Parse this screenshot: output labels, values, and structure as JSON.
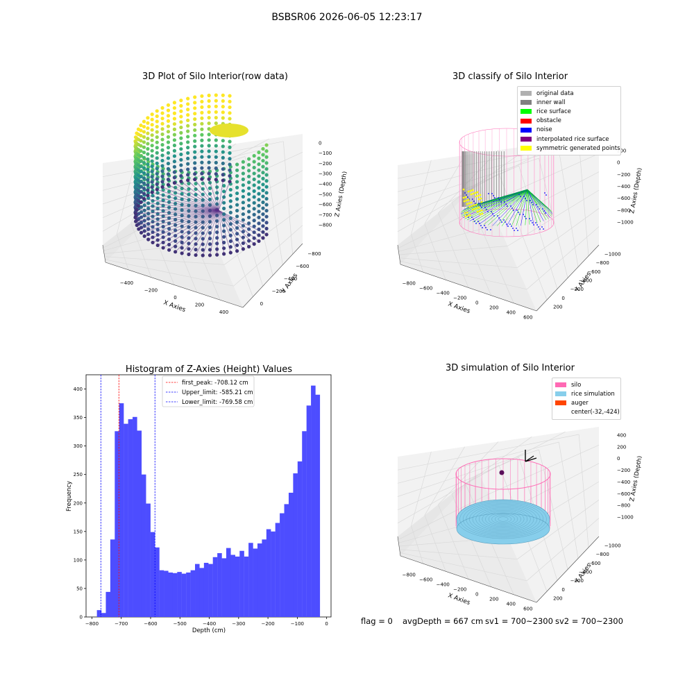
{
  "suptitle": "BSBSR06 2026-06-05 12:23:17",
  "panels": {
    "raw": {
      "title": "3D Plot of Silo Interior(row data)",
      "xlabel": "X Axies",
      "ylabel": "Y Axies",
      "zlabel": "Z Axies (Depth)",
      "xticks": [
        "−400",
        "−200",
        "0",
        "200",
        "400"
      ],
      "yticks": [
        "0",
        "−200",
        "−400",
        "−600",
        "−800"
      ],
      "zticks": [
        "0",
        "−100",
        "−200",
        "−300",
        "−400",
        "−500",
        "−600",
        "−700",
        "−800"
      ]
    },
    "classify": {
      "title": "3D classify of Silo Interior",
      "xlabel": "X Axies",
      "ylabel": "Y Axies",
      "zlabel": "Z Axies (Depth)",
      "xticks": [
        "−800",
        "−600",
        "−400",
        "−200",
        "0",
        "200",
        "400",
        "600"
      ],
      "yticks": [
        "200",
        "0",
        "−200",
        "−400",
        "−600",
        "−800",
        "−1000"
      ],
      "zticks": [
        "200",
        "0",
        "−200",
        "−400",
        "−600",
        "−800",
        "−1000"
      ],
      "legend": [
        {
          "label": "original data",
          "color": "#b0b0b0"
        },
        {
          "label": "inner wall",
          "color": "#808080"
        },
        {
          "label": "rice surface",
          "color": "#00ff00"
        },
        {
          "label": "obstacle",
          "color": "#ff0000"
        },
        {
          "label": "noise",
          "color": "#0000ff"
        },
        {
          "label": "interpolated rice surface",
          "color": "#800080"
        },
        {
          "label": "symmetric generated points",
          "color": "#ffff00"
        }
      ]
    },
    "simulation": {
      "title": "3D simulation of Silo Interior",
      "xlabel": "X Axies",
      "ylabel": "Y Axies",
      "zlabel": "Z Axies (Depth)",
      "xticks": [
        "−800",
        "−600",
        "−400",
        "−200",
        "0",
        "200",
        "400",
        "600"
      ],
      "yticks": [
        "200",
        "0",
        "−200",
        "−400",
        "−600",
        "−800",
        "−1000"
      ],
      "zticks": [
        "400",
        "200",
        "0",
        "−200",
        "−400",
        "−600",
        "−800",
        "−1000"
      ],
      "legend": [
        {
          "label": "silo",
          "color": "#ff69b4"
        },
        {
          "label": "rice simulation",
          "color": "#87ceeb"
        },
        {
          "label": "auger",
          "color": "#ff4500"
        },
        {
          "label": "center(-32,-424)",
          "color": ""
        }
      ]
    }
  },
  "chart_data": {
    "type": "bar",
    "title": "Histogram of Z-Axies (Height) Values",
    "xlabel": "Depth (cm)",
    "ylabel": "Frequency",
    "xlim": [
      -820,
      15
    ],
    "ylim": [
      0,
      425
    ],
    "xticks": [
      -800,
      -700,
      -600,
      -500,
      -400,
      -300,
      -200,
      -100,
      0
    ],
    "yticks": [
      0,
      50,
      100,
      150,
      200,
      250,
      300,
      350,
      400
    ],
    "xtick_labels": [
      "−800",
      "−700",
      "−600",
      "−500",
      "−400",
      "−300",
      "−200",
      "−100",
      "0"
    ],
    "bar_color": "#4d4dff",
    "bin_start": -783,
    "bin_width": 15.2,
    "values": [
      12,
      7,
      44,
      136,
      326,
      375,
      339,
      347,
      351,
      327,
      250,
      199,
      149,
      122,
      82,
      81,
      78,
      77,
      79,
      76,
      78,
      82,
      93,
      86,
      95,
      93,
      105,
      112,
      103,
      121,
      109,
      106,
      116,
      106,
      130,
      120,
      129,
      136,
      154,
      150,
      165,
      182,
      198,
      218,
      252,
      273,
      326,
      371,
      406,
      390
    ],
    "vlines": [
      {
        "label": "first_peak: -708.12 cm",
        "x": -708.12,
        "color": "#ff0000"
      },
      {
        "label": "Upper_limit: -585.21 cm",
        "x": -585.21,
        "color": "#0000ff"
      },
      {
        "label": "Lower_limit: -769.58 cm",
        "x": -769.58,
        "color": "#0000ff"
      }
    ],
    "legend_position": "upper center"
  },
  "status": {
    "flag": "flag = 0",
    "avg": "avgDepth = 667 cm",
    "sv1": "sv1 = 700~2300",
    "sv2": "sv2 = 700~2300"
  }
}
